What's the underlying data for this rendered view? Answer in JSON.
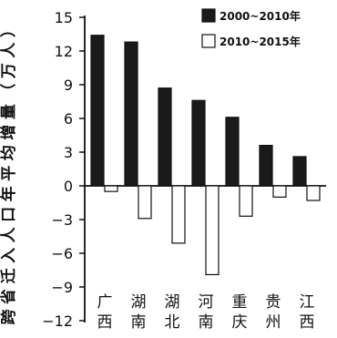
{
  "chart_data": {
    "type": "bar",
    "ylabel": "跨省迁入人口年平均增量（万人）",
    "ylim": [
      -12,
      15
    ],
    "yticks": [
      15,
      12,
      9,
      6,
      3,
      0,
      -3,
      -6,
      -9,
      -12
    ],
    "categories": [
      "广西",
      "湖南",
      "湖北",
      "河南",
      "重庆",
      "贵州",
      "江西"
    ],
    "categories_split": [
      [
        "广",
        "西"
      ],
      [
        "湖",
        "南"
      ],
      [
        "湖",
        "北"
      ],
      [
        "河",
        "南"
      ],
      [
        "重",
        "庆"
      ],
      [
        "贵",
        "州"
      ],
      [
        "江",
        "西"
      ]
    ],
    "series": [
      {
        "name": "2000~2010年",
        "fill": "#1a1a1a",
        "values": [
          13.4,
          12.8,
          8.7,
          7.6,
          6.1,
          3.6,
          2.6
        ]
      },
      {
        "name": "2010~2015年",
        "fill": "#ffffff",
        "values": [
          -0.5,
          -2.9,
          -5.1,
          -7.9,
          -2.7,
          -1.0,
          -1.3
        ]
      }
    ],
    "legend_position": "top-right",
    "grid": false
  }
}
